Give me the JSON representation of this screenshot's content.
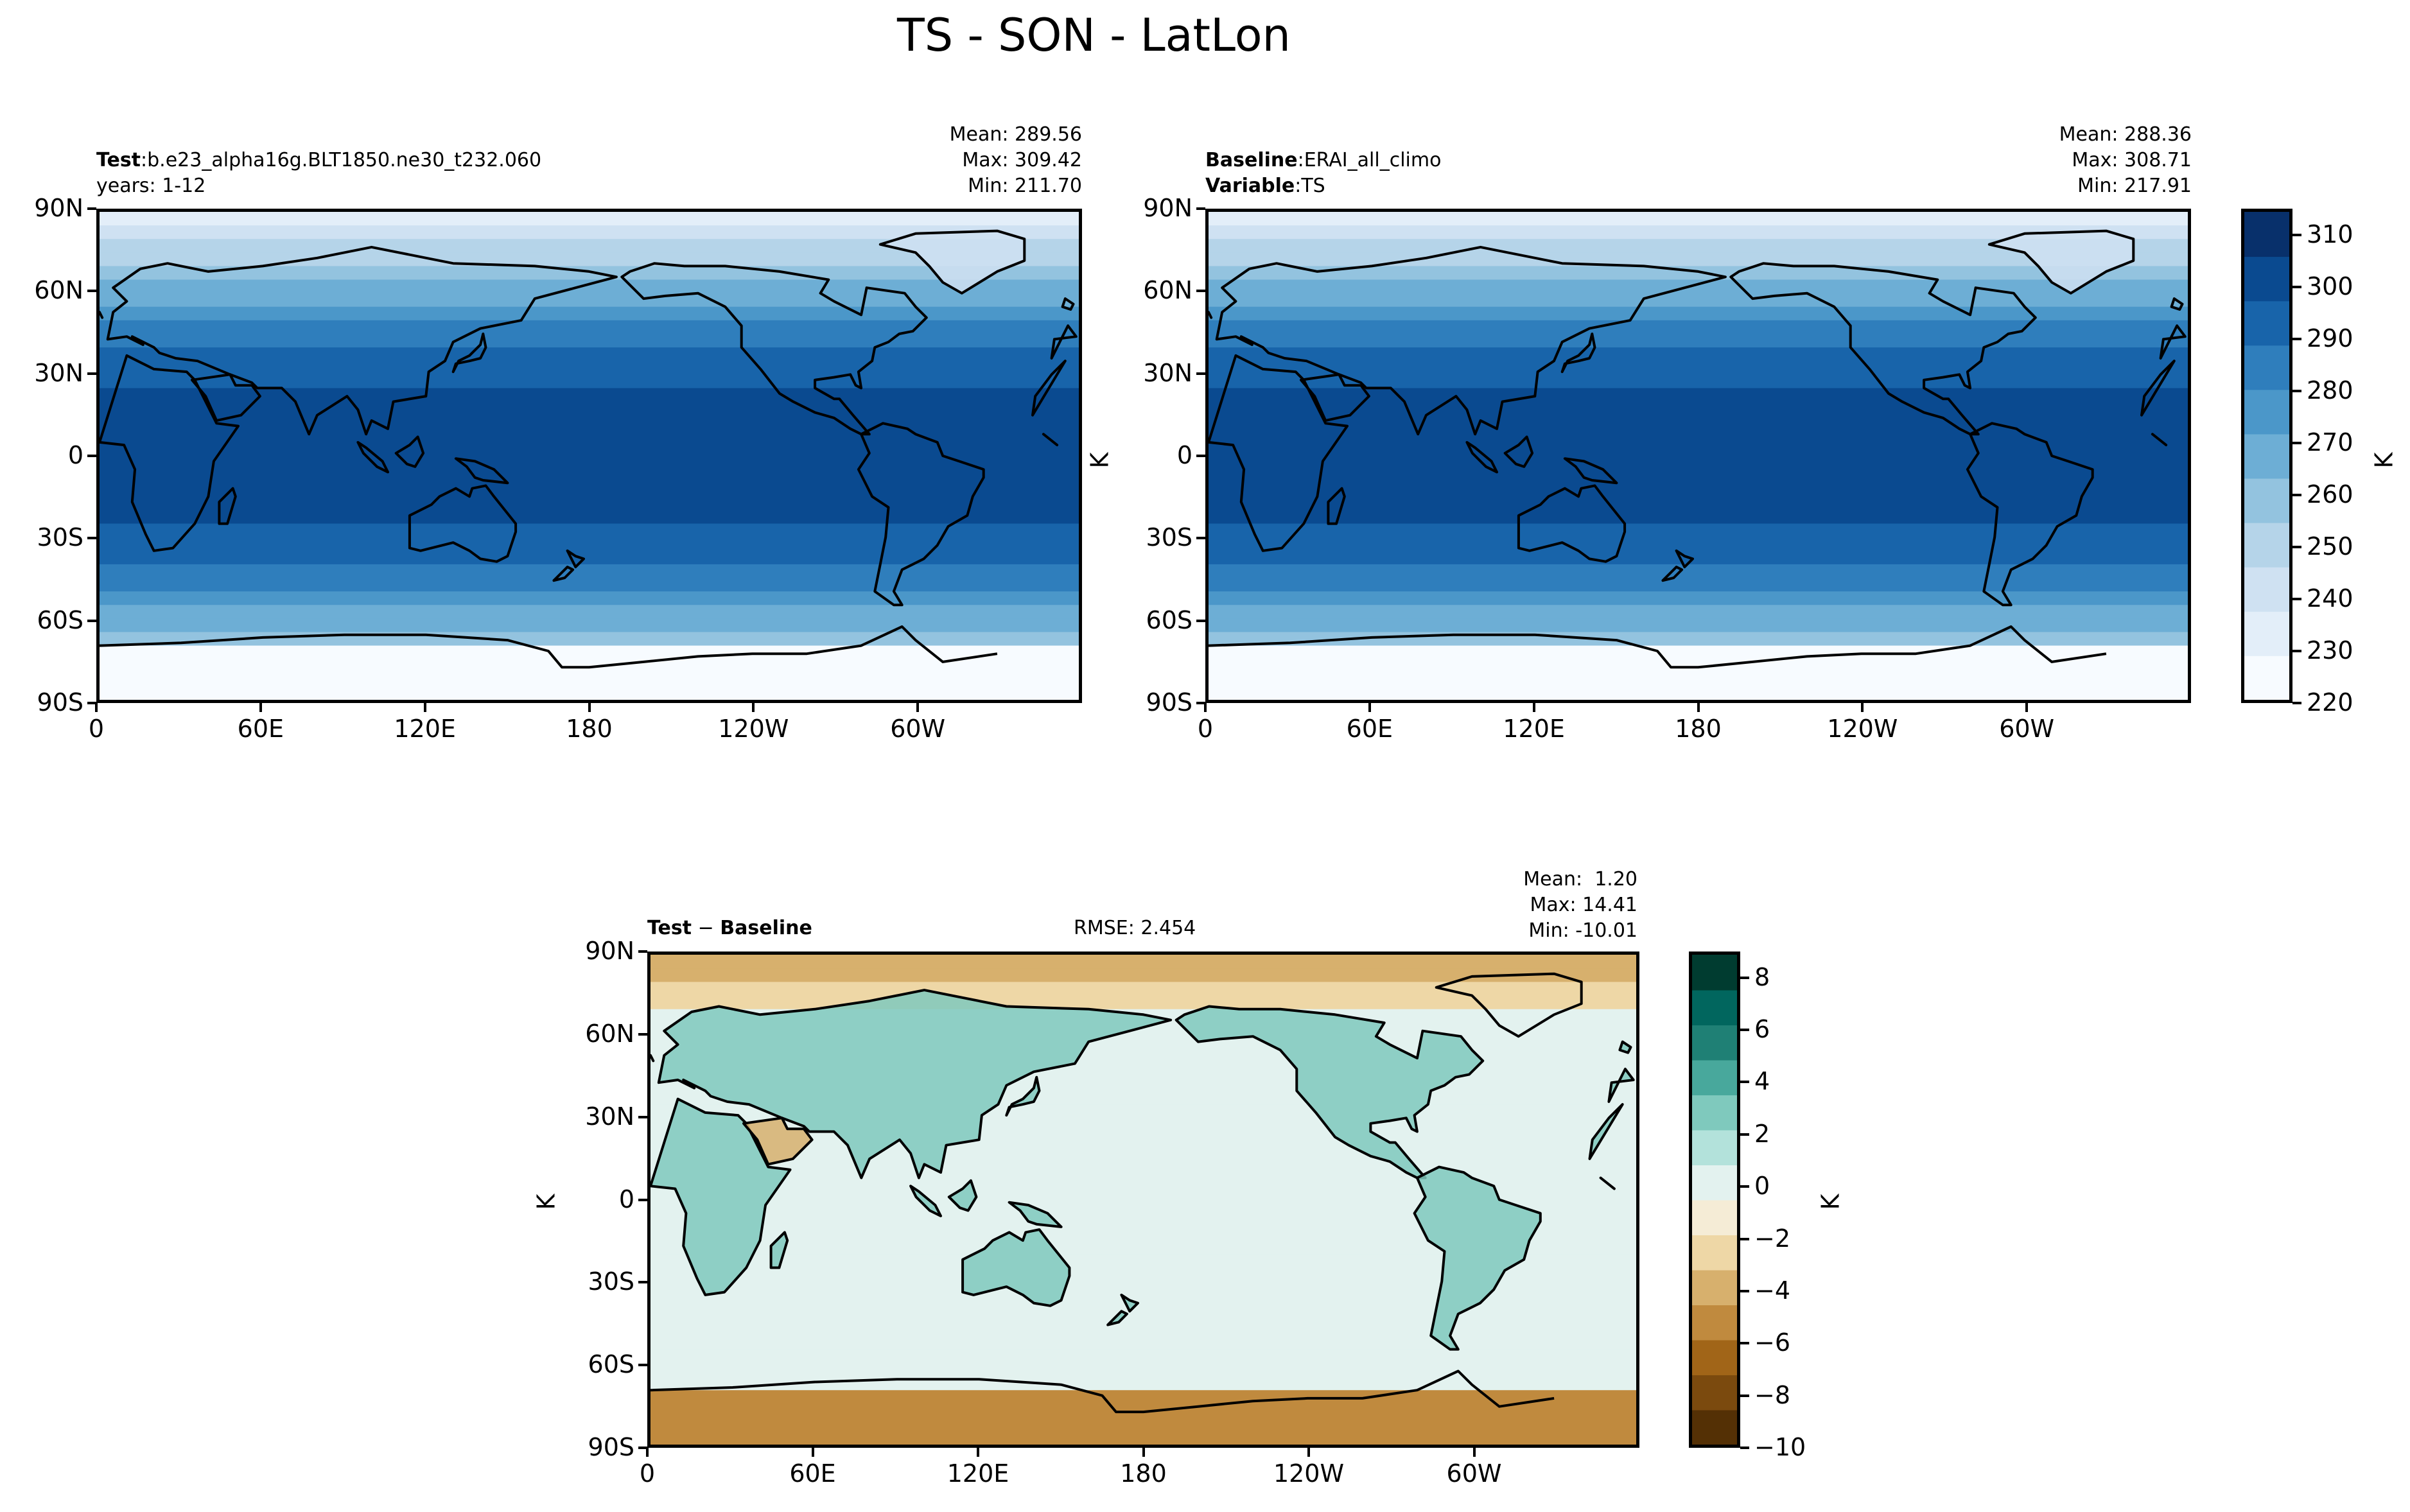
{
  "figure": {
    "title": "TS - SON - LatLon"
  },
  "panels": {
    "test": {
      "label_bold": "Test",
      "label_sep": ":",
      "label_value": "b.e23_alpha16g.BLT1850.ne30_t232.060",
      "line2": "years: 1-12",
      "stats": {
        "mean": "Mean: 289.56",
        "max": "Max: 309.42",
        "min": "Min: 211.70"
      }
    },
    "baseline": {
      "label_bold": "Baseline",
      "label_sep": ":",
      "label_value": "ERAI_all_climo",
      "line2_bold": "Variable",
      "line2_sep": ":",
      "line2_value": "TS",
      "stats": {
        "mean": "Mean: 288.36",
        "max": "Max: 308.71",
        "min": "Min: 217.91"
      }
    },
    "diff": {
      "label_bold": "Test",
      "label_op": " − ",
      "label_bold2": "Baseline",
      "rmse": "RMSE: 2.454",
      "stats": {
        "mean": "Mean:  1.20",
        "max": "Max: 14.41",
        "min": "Min: -10.01"
      }
    }
  },
  "axes": {
    "lat_ticks": [
      "90N",
      "60N",
      "30N",
      "0",
      "30S",
      "60S",
      "90S"
    ],
    "lon_ticks": [
      "0",
      "60E",
      "120E",
      "180",
      "120W",
      "60W"
    ],
    "units_label": "K"
  },
  "colorbars": {
    "abs": {
      "label": "K",
      "ticks": [
        "310",
        "300",
        "290",
        "280",
        "270",
        "260",
        "250",
        "240",
        "230",
        "220"
      ],
      "range": [
        220,
        315
      ],
      "colors": [
        "#f7fbff",
        "#e3eef9",
        "#cfe1f2",
        "#b5d4e9",
        "#93c3df",
        "#6daed5",
        "#4b97c9",
        "#2f7ebc",
        "#1864aa",
        "#0a4a90",
        "#08306b"
      ]
    },
    "diff": {
      "label": "K",
      "ticks": [
        "8",
        "6",
        "4",
        "2",
        "0",
        "−2",
        "−4",
        "−6",
        "−8",
        "−10"
      ],
      "range": [
        -10,
        9
      ],
      "colors": [
        "#543005",
        "#7b4a0e",
        "#a16518",
        "#c08a3e",
        "#d7b06d",
        "#eed7a6",
        "#f5ecd6",
        "#e3f2ef",
        "#b3e2db",
        "#7fc9bd",
        "#48a89c",
        "#1f8075",
        "#01665e",
        "#003c30"
      ]
    }
  },
  "chart_data": [
    {
      "type": "heatmap",
      "title": "Test",
      "variable": "TS",
      "units": "K",
      "season": "SON",
      "mean": 289.56,
      "max": 309.42,
      "min": 211.7,
      "xlim": [
        0,
        360
      ],
      "ylim": [
        -90,
        90
      ]
    },
    {
      "type": "heatmap",
      "title": "Baseline",
      "variable": "TS",
      "units": "K",
      "mean": 288.36,
      "max": 308.71,
      "min": 217.91,
      "xlim": [
        0,
        360
      ],
      "ylim": [
        -90,
        90
      ]
    },
    {
      "type": "heatmap",
      "title": "Test − Baseline",
      "units": "K",
      "mean": 1.2,
      "max": 14.41,
      "min": -10.01,
      "rmse": 2.454,
      "xlim": [
        0,
        360
      ],
      "ylim": [
        -90,
        90
      ]
    }
  ]
}
